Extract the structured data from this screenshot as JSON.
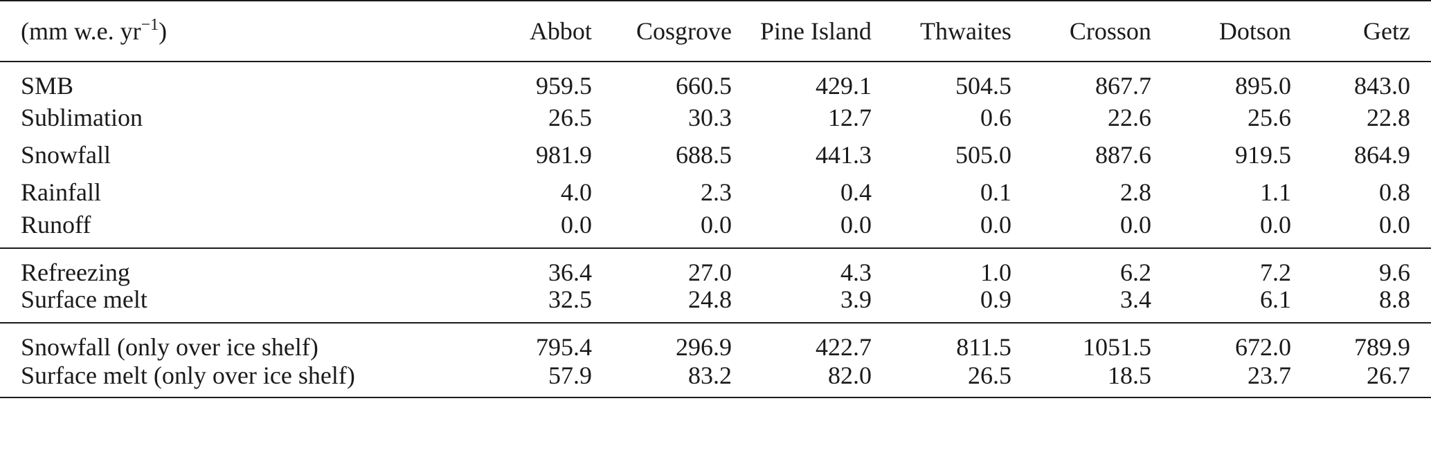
{
  "table": {
    "header": {
      "unit_prefix": "(mm w.e. yr",
      "unit_exponent": "−1",
      "unit_suffix": ")",
      "columns": [
        "Abbot",
        "Cosgrove",
        "Pine Island",
        "Thwaites",
        "Crosson",
        "Dotson",
        "Getz"
      ]
    },
    "groups": [
      {
        "rows": [
          {
            "label": "SMB",
            "values": [
              "959.5",
              "660.5",
              "429.1",
              "504.5",
              "867.7",
              "895.0",
              "843.0"
            ]
          },
          {
            "label": "Sublimation",
            "values": [
              "26.5",
              "30.3",
              "12.7",
              "0.6",
              "22.6",
              "25.6",
              "22.8"
            ]
          },
          {
            "label": "Snowfall",
            "values": [
              "981.9",
              "688.5",
              "441.3",
              "505.0",
              "887.6",
              "919.5",
              "864.9"
            ]
          },
          {
            "label": "Rainfall",
            "values": [
              "4.0",
              "2.3",
              "0.4",
              "0.1",
              "2.8",
              "1.1",
              "0.8"
            ]
          },
          {
            "label": "Runoff",
            "values": [
              "0.0",
              "0.0",
              "0.0",
              "0.0",
              "0.0",
              "0.0",
              "0.0"
            ]
          }
        ]
      },
      {
        "rows": [
          {
            "label": "Refreezing",
            "values": [
              "36.4",
              "27.0",
              "4.3",
              "1.0",
              "6.2",
              "7.2",
              "9.6"
            ]
          },
          {
            "label": "Surface melt",
            "values": [
              "32.5",
              "24.8",
              "3.9",
              "0.9",
              "3.4",
              "6.1",
              "8.8"
            ]
          }
        ]
      },
      {
        "rows": [
          {
            "label": "Snowfall (only over ice shelf)",
            "values": [
              "795.4",
              "296.9",
              "422.7",
              "811.5",
              "1051.5",
              "672.0",
              "789.9"
            ]
          },
          {
            "label": "Surface melt (only over ice shelf)",
            "values": [
              "57.9",
              "83.2",
              "82.0",
              "26.5",
              "18.5",
              "23.7",
              "26.7"
            ]
          }
        ]
      }
    ]
  }
}
